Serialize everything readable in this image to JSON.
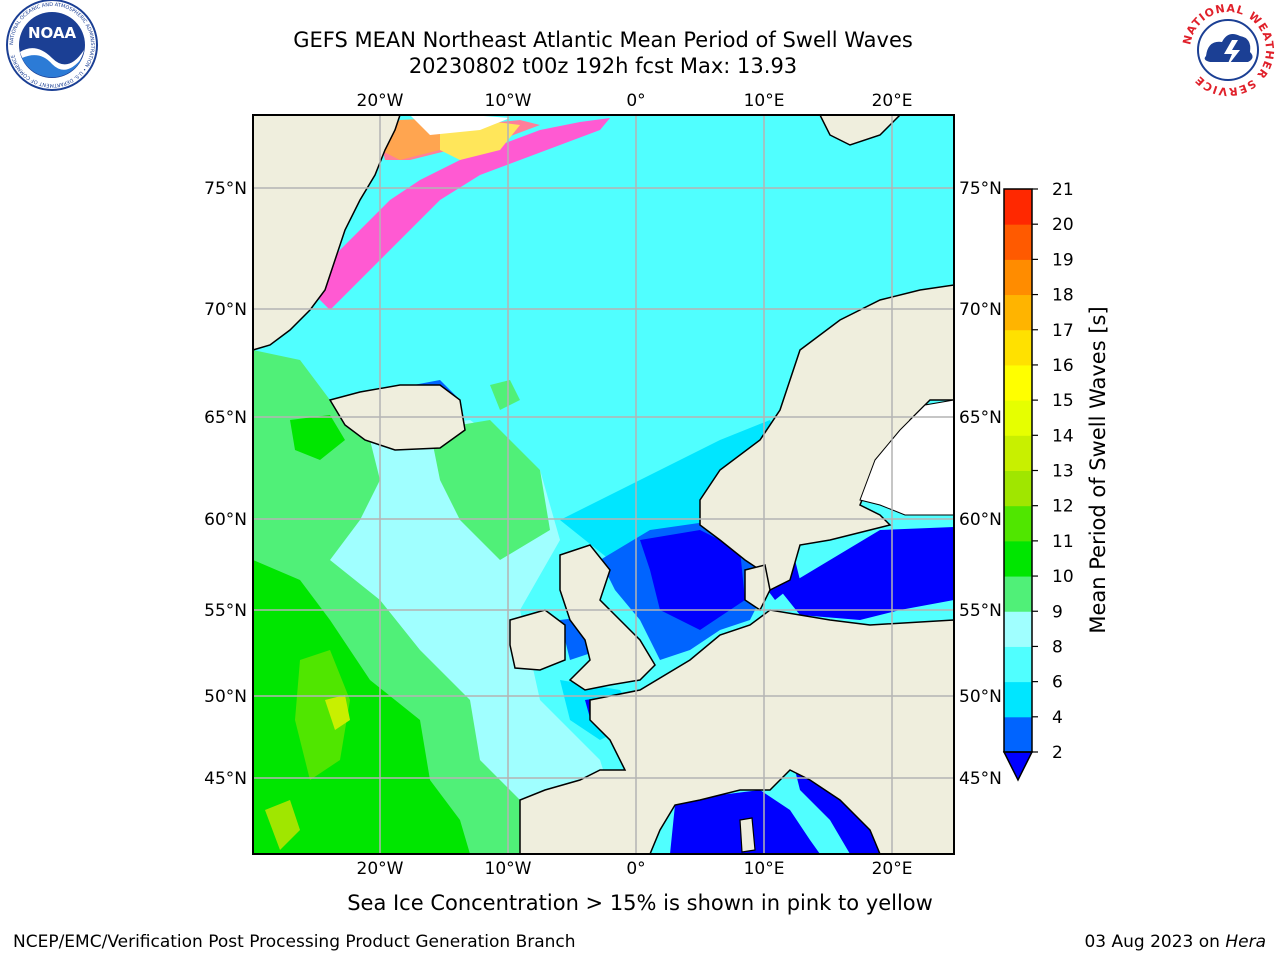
{
  "header": {
    "title_line1": "GEFS MEAN Northeast Atlantic Mean Period of Swell Waves",
    "title_line2": "20230802 t00z 192h fcst   Max: 13.93"
  },
  "logos": {
    "left": "noaa-logo",
    "left_text": "NOAA",
    "left_ring_text": "NATIONAL OCEANIC AND ATMOSPHERIC ADMINISTRATION • U.S. DEPARTMENT OF COMMERCE",
    "right": "nws-logo",
    "right_ring_text": "NATIONAL WEATHER SERVICE"
  },
  "map": {
    "lon_labels": [
      "20°W",
      "10°W",
      "0°",
      "10°E",
      "20°E"
    ],
    "lat_labels": [
      "75°N",
      "70°N",
      "65°N",
      "60°N",
      "55°N",
      "50°N",
      "45°N"
    ],
    "colors": {
      "land": "#efeedd",
      "ice_pink": "#ff5ad2",
      "ice_salmon": "#ff7f9a",
      "ice_orange": "#ffa550",
      "ice_yellow": "#ffe65a",
      "grid": "#b4b4b4"
    }
  },
  "colorbar": {
    "label": "Mean Period of Swell Waves [s]",
    "ticks": [
      "2",
      "4",
      "6",
      "8",
      "9",
      "10",
      "11",
      "12",
      "13",
      "14",
      "15",
      "16",
      "17",
      "18",
      "19",
      "20",
      "21"
    ],
    "colors": [
      "#0064ff",
      "#00e6ff",
      "#50ffff",
      "#a0ffff",
      "#50f078",
      "#00e600",
      "#50e600",
      "#a0e600",
      "#c8f000",
      "#e6ff00",
      "#ffff00",
      "#ffe100",
      "#ffb400",
      "#ff8c00",
      "#ff5a00",
      "#ff2800",
      "#ff0000"
    ],
    "extend_color": "#0000ff"
  },
  "caption": "Sea Ice Concentration > 15% is shown in pink to yellow",
  "footer": {
    "left": "NCEP/EMC/Verification Post Processing Product Generation Branch",
    "right_date": "03 Aug 2023 on ",
    "right_host": "Hera"
  }
}
